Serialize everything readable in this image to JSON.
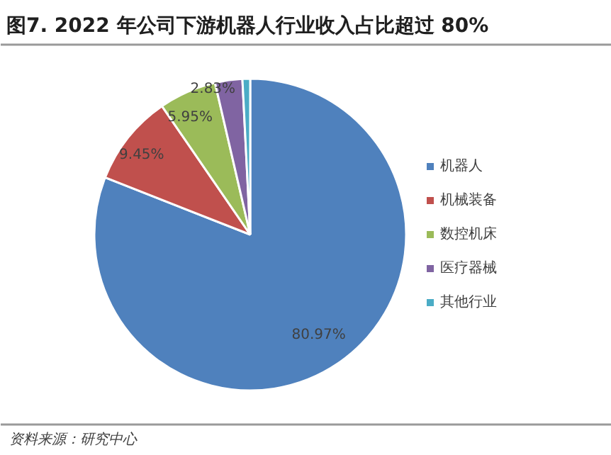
{
  "chart_data": {
    "type": "pie",
    "title": "图7. 2022 年公司下游机器人行业收入占比超过 80%",
    "categories": [
      "机器人",
      "机械装备",
      "数控机床",
      "医疗器械",
      "其他行业"
    ],
    "values": [
      80.97,
      9.45,
      5.95,
      2.83,
      0.8
    ],
    "colors": [
      "#4f81bd",
      "#c0504d",
      "#9bbb59",
      "#8064a2",
      "#4bacc6"
    ],
    "value_labels": [
      "80.97%",
      "9.45%",
      "5.95%",
      "2.83%",
      null
    ],
    "legend": "right",
    "annotations": [
      "资料来源：研究中心"
    ]
  }
}
